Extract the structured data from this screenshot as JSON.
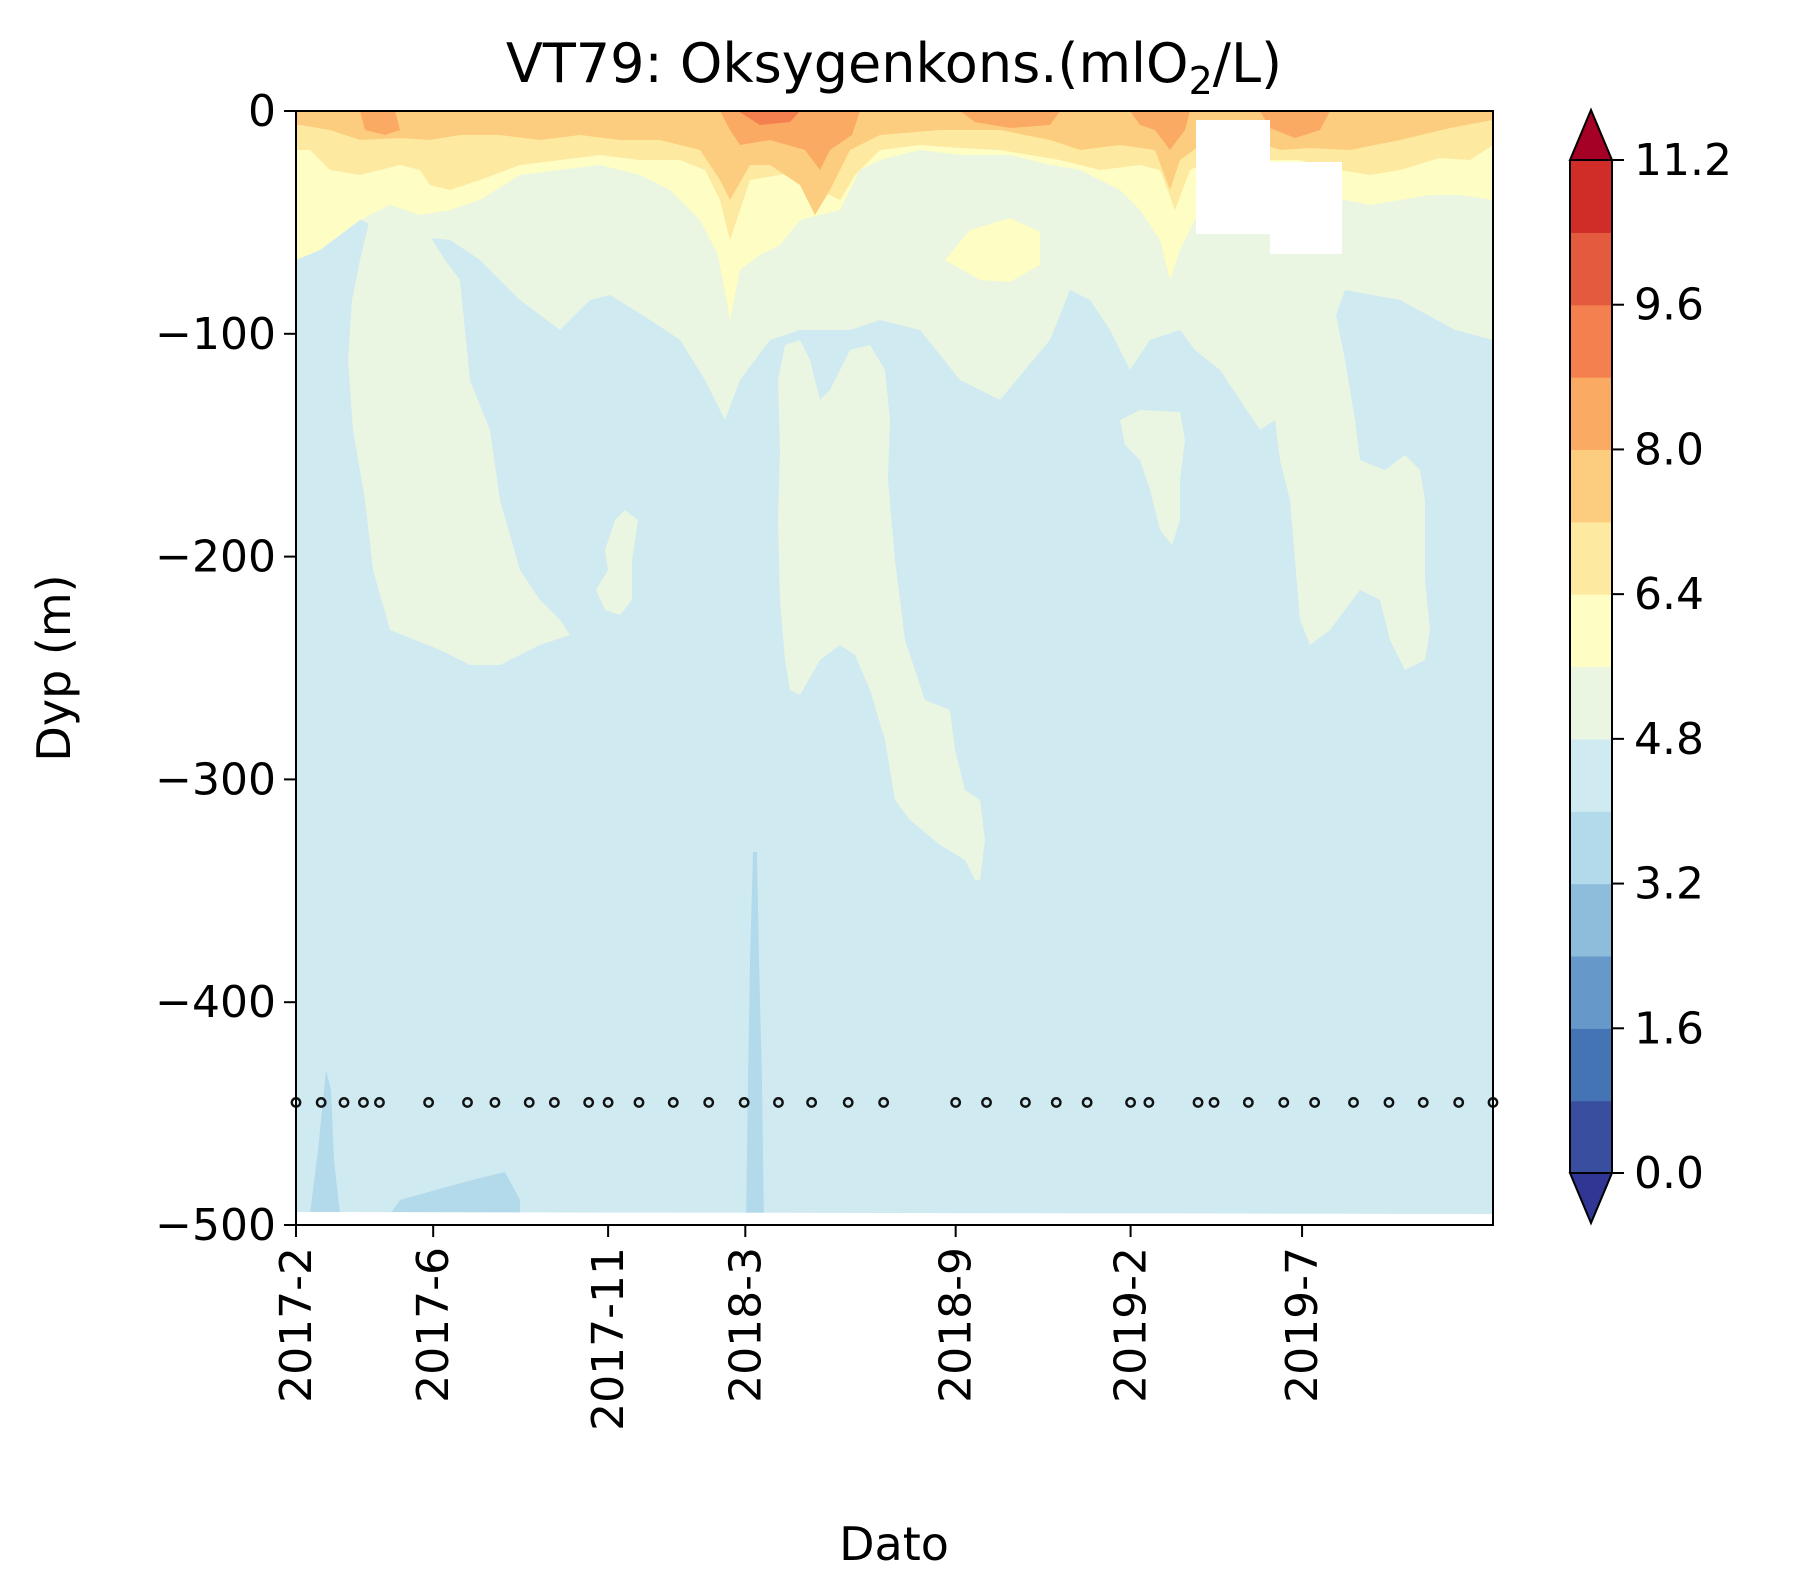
{
  "chart_data": {
    "type": "heatmap",
    "title": "VT79: Oksygenkons.(mlO",
    "title_subscript": "2",
    "title_suffix": "/L)",
    "xlabel": "Dato",
    "ylabel": "Dyp (m)",
    "ylim": [
      -500,
      0
    ],
    "yticks": [
      0,
      -100,
      -200,
      -300,
      -400,
      -500
    ],
    "ytick_labels": [
      "0",
      "−100",
      "−200",
      "−300",
      "−400",
      "−500"
    ],
    "xlim": [
      "2017-02-01",
      "2019-12-15"
    ],
    "xticks": [
      {
        "date": "2017-02-01",
        "label": "2017-2"
      },
      {
        "date": "2017-06-01",
        "label": "2017-6"
      },
      {
        "date": "2017-11-01",
        "label": "2017-11"
      },
      {
        "date": "2018-03-01",
        "label": "2018-3"
      },
      {
        "date": "2018-09-01",
        "label": "2018-9"
      },
      {
        "date": "2019-02-01",
        "label": "2019-2"
      },
      {
        "date": "2019-07-01",
        "label": "2019-7"
      }
    ],
    "colorbar": {
      "levels": [
        0.0,
        0.8,
        1.6,
        2.4,
        3.2,
        4.0,
        4.8,
        5.6,
        6.4,
        7.2,
        8.0,
        8.8,
        9.6,
        10.4,
        11.2
      ],
      "tick_values": [
        0.0,
        1.6,
        3.2,
        4.8,
        6.4,
        8.0,
        9.6,
        11.2
      ],
      "tick_labels": [
        "0.0",
        "1.6",
        "3.2",
        "4.8",
        "6.4",
        "8.0",
        "9.6",
        "11.2"
      ],
      "colors": [
        "#3a4ea0",
        "#4474b4",
        "#6699c9",
        "#8dbdda",
        "#b3daea",
        "#d0eaf2",
        "#eaf5e2",
        "#fdfdc4",
        "#fde9a0",
        "#fdcd7f",
        "#faaa62",
        "#f47f4f",
        "#e45a3e",
        "#d02d28"
      ],
      "under_color": "#313695",
      "over_color": "#a50026",
      "extend": "both"
    },
    "sample_depth": -445,
    "sample_dates": [
      "2017-02-01",
      "2017-02-23",
      "2017-03-15",
      "2017-04-01",
      "2017-04-15",
      "2017-05-28",
      "2017-07-01",
      "2017-07-25",
      "2017-08-24",
      "2017-09-15",
      "2017-10-15",
      "2017-11-01",
      "2017-11-28",
      "2017-12-28",
      "2018-01-28",
      "2018-02-28",
      "2018-03-30",
      "2018-04-28",
      "2018-05-30",
      "2018-06-30",
      "2018-09-01",
      "2018-09-28",
      "2018-11-01",
      "2018-11-28",
      "2018-12-25",
      "2019-02-01",
      "2019-02-17",
      "2019-04-01",
      "2019-04-15",
      "2019-05-15",
      "2019-06-15",
      "2019-07-12",
      "2019-08-15",
      "2019-09-15",
      "2019-10-15",
      "2019-11-15",
      "2019-12-15"
    ],
    "fields": [
      {
        "level": "4.0-4.8",
        "description": "dominant background at all depths below about -60 m"
      },
      {
        "level": "4.8-5.6",
        "description": "upper layer 0 to about -100 m plus intrusions to -250 m (2017-4 to 2017-8, 2018-4 to 2018-9, 2019-6 to 2019-11)"
      },
      {
        "level": "5.6-6.4",
        "description": "surface layer 0 to about -40 m"
      },
      {
        "level": "6.4-8.8",
        "description": "near-surface maxima 0 to -20 m, strongest in spring 2018"
      },
      {
        "level": "3.2-4.0",
        "description": "near-bottom patches at -440 to -500 m (2017-2/3, 2017-7/8, 2018-3)"
      }
    ]
  }
}
